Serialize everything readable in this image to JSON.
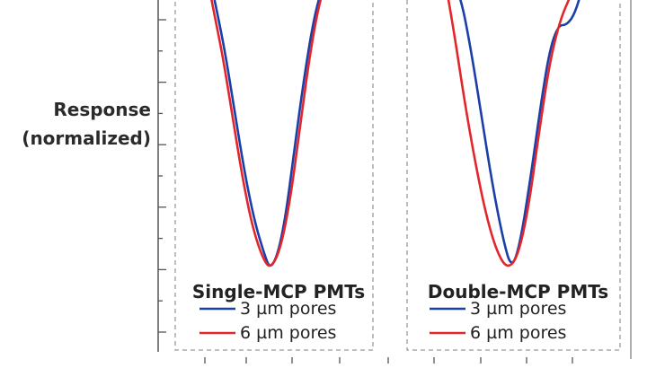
{
  "chart_data": {
    "type": "line",
    "ylabel_line1": "Response",
    "ylabel_line2": "(normalized)",
    "grid": false,
    "panels": [
      {
        "title": "Single-MCP PMTs",
        "legend": [
          "3 µm pores",
          "6 µm pores"
        ],
        "series": [
          {
            "name": "3 µm pores",
            "color": "#1a3fa8",
            "points": [
              [
                0.16,
                1.0
              ],
              [
                0.2,
                0.88
              ],
              [
                0.25,
                0.72
              ],
              [
                0.3,
                0.52
              ],
              [
                0.35,
                0.32
              ],
              [
                0.4,
                0.16
              ],
              [
                0.45,
                0.05
              ],
              [
                0.48,
                0.0
              ],
              [
                0.52,
                0.05
              ],
              [
                0.56,
                0.18
              ],
              [
                0.6,
                0.38
              ],
              [
                0.65,
                0.62
              ],
              [
                0.7,
                0.82
              ],
              [
                0.75,
                0.94
              ],
              [
                0.8,
                1.0
              ]
            ]
          },
          {
            "name": "6 µm pores",
            "color": "#e3262c",
            "points": [
              [
                0.15,
                1.0
              ],
              [
                0.19,
                0.86
              ],
              [
                0.24,
                0.7
              ],
              [
                0.29,
                0.5
              ],
              [
                0.34,
                0.3
              ],
              [
                0.39,
                0.14
              ],
              [
                0.44,
                0.04
              ],
              [
                0.48,
                0.0
              ],
              [
                0.53,
                0.06
              ],
              [
                0.58,
                0.22
              ],
              [
                0.63,
                0.46
              ],
              [
                0.68,
                0.7
              ],
              [
                0.73,
                0.88
              ],
              [
                0.78,
                0.97
              ],
              [
                0.82,
                1.0
              ]
            ]
          }
        ]
      },
      {
        "title": "Double-MCP PMTs",
        "legend": [
          "3 µm pores",
          "6 µm pores"
        ],
        "series": [
          {
            "name": "3 µm pores",
            "color": "#1a3fa8",
            "points": [
              [
                0.18,
                1.0
              ],
              [
                0.25,
                0.9
              ],
              [
                0.3,
                0.72
              ],
              [
                0.35,
                0.5
              ],
              [
                0.4,
                0.28
              ],
              [
                0.45,
                0.1
              ],
              [
                0.49,
                0.0
              ],
              [
                0.53,
                0.08
              ],
              [
                0.58,
                0.3
              ],
              [
                0.63,
                0.55
              ],
              [
                0.67,
                0.72
              ],
              [
                0.71,
                0.8
              ],
              [
                0.75,
                0.8
              ],
              [
                0.79,
                0.84
              ],
              [
                0.83,
                0.94
              ]
            ]
          },
          {
            "name": "6 µm pores",
            "color": "#e3262c",
            "points": [
              [
                0.17,
                0.98
              ],
              [
                0.22,
                0.78
              ],
              [
                0.27,
                0.55
              ],
              [
                0.32,
                0.35
              ],
              [
                0.37,
                0.18
              ],
              [
                0.42,
                0.06
              ],
              [
                0.47,
                0.0
              ],
              [
                0.52,
                0.04
              ],
              [
                0.57,
                0.2
              ],
              [
                0.62,
                0.45
              ],
              [
                0.67,
                0.68
              ],
              [
                0.72,
                0.82
              ],
              [
                0.77,
                0.9
              ],
              [
                0.82,
                0.98
              ]
            ]
          }
        ]
      }
    ]
  }
}
